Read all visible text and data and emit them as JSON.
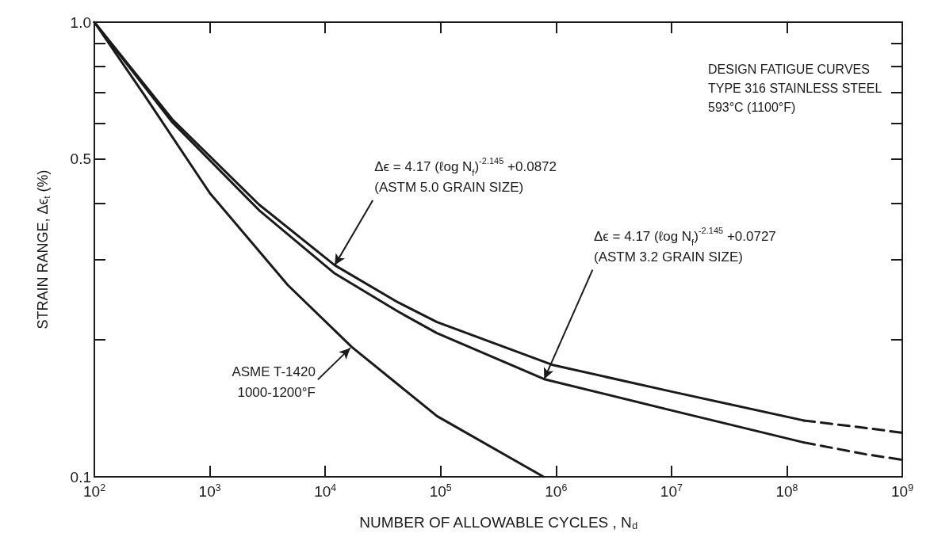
{
  "chart_data": {
    "type": "line",
    "title": "DESIGN FATIGUE CURVES\nTYPE 316 STAINLESS STEEL\n593°C (1100°F)",
    "xlabel": "NUMBER OF ALLOWABLE CYCLES , N$_{d}$",
    "ylabel": "STRAIN RANGE, Δϵ$_{t}$ (%)",
    "log": "xy",
    "marker": "none",
    "grid": false,
    "xlim": [
      100,
      1000000000
    ],
    "xticks": [
      {
        "value": 100,
        "label": "10$^{2}$"
      },
      {
        "value": 1000,
        "label": "10$^{3}$"
      },
      {
        "value": 10000,
        "label": "10$^{4}$"
      },
      {
        "value": 100000,
        "label": "10$^{5}$"
      },
      {
        "value": 1000000,
        "label": "10$^{6}$"
      },
      {
        "value": 10000000,
        "label": "10$^{7}$"
      },
      {
        "value": 100000000,
        "label": "10$^{8}$"
      },
      {
        "value": 1000000000,
        "label": "10$^{9}$"
      }
    ],
    "ylim": [
      0.1,
      1
    ],
    "yticks": [
      0.1,
      {
        "value": 0.2,
        "label": null
      },
      {
        "value": 0.3,
        "label": null
      },
      {
        "value": 0.4,
        "label": null
      },
      0.5,
      {
        "value": 0.6,
        "label": null
      },
      {
        "value": 0.7,
        "label": null
      },
      {
        "value": 0.8,
        "label": null
      },
      {
        "value": 0.9,
        "label": null
      },
      {
        "value": 1,
        "label": "1.0"
      }
    ],
    "series": [
      {
        "color": "#1a1a1a",
        "line_style": "solid",
        "x": [
          100,
          267,
          1000,
          4750,
          17000,
          93000,
          780000
        ],
        "values": [
          1.0,
          0.695,
          0.421,
          0.264,
          0.193,
          0.136,
          0.1
        ]
      },
      {
        "color": "#1a1a1a",
        "line_style": "solid",
        "x": [
          100,
          474,
          2670,
          12100,
          42700,
          93000,
          950000,
          10000000,
          140000000
        ],
        "values": [
          1.0,
          0.611,
          0.397,
          0.292,
          0.242,
          0.219,
          0.176,
          0.154,
          0.133
        ]
      },
      {
        "color": "#1a1a1a",
        "line_style": "dashed",
        "x": [
          140000000,
          490000000,
          1000000000
        ],
        "values": [
          0.133,
          0.128,
          0.125
        ]
      },
      {
        "color": "#1a1a1a",
        "line_style": "solid",
        "x": [
          100,
          474,
          2670,
          12100,
          42700,
          93000,
          790000,
          10000000,
          140000000
        ],
        "values": [
          1.0,
          0.602,
          0.386,
          0.28,
          0.231,
          0.207,
          0.164,
          0.14,
          0.119
        ]
      },
      {
        "color": "#1a1a1a",
        "line_style": "dashed",
        "x": [
          140000000,
          490000000,
          1000000000
        ],
        "values": [
          0.119,
          0.112,
          0.109
        ]
      }
    ],
    "annotations": [
      {
        "text": "Δϵ = 4.17 (ℓog N$_{f}$)$^{-2.145}$ +0.0872\n(ASTM 5.0 GRAIN SIZE)",
        "x": 12100,
        "y": 0.292
      },
      {
        "text": "Δϵ = 4.17 (ℓog N$_{f}$)$^{-2.145}$ +0.0727\n(ASTM 3.2 GRAIN SIZE)",
        "x": 790000,
        "y": 0.164
      },
      {
        "text": "ASME T-1420\n1000-1200°F",
        "x": 16500,
        "y": 0.192
      }
    ]
  }
}
